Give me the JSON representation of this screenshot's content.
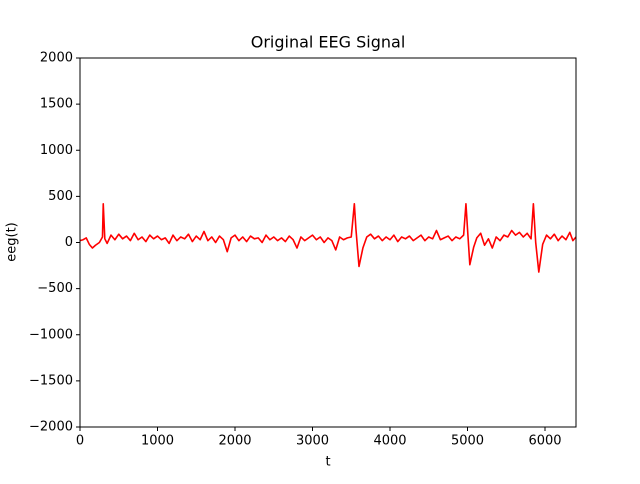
{
  "chart_data": {
    "type": "line",
    "title": "Original EEG Signal",
    "xlabel": "t",
    "ylabel": "eeg(t)",
    "xlim": [
      0,
      6400
    ],
    "ylim": [
      -2000,
      2000
    ],
    "xticks": [
      0,
      1000,
      2000,
      3000,
      4000,
      5000,
      6000
    ],
    "yticks": [
      {
        "value": -2000,
        "label": "−2000"
      },
      {
        "value": -1500,
        "label": "−1500"
      },
      {
        "value": -1000,
        "label": "−1000"
      },
      {
        "value": -500,
        "label": "−500"
      },
      0,
      500,
      1000,
      1500,
      2000
    ],
    "grid": false,
    "x": [
      0,
      40,
      80,
      120,
      160,
      200,
      250,
      290,
      300,
      320,
      350,
      400,
      450,
      500,
      550,
      600,
      650,
      700,
      750,
      800,
      850,
      900,
      950,
      1000,
      1050,
      1100,
      1150,
      1200,
      1250,
      1300,
      1350,
      1400,
      1450,
      1500,
      1550,
      1600,
      1650,
      1700,
      1750,
      1800,
      1850,
      1900,
      1950,
      2000,
      2050,
      2100,
      2150,
      2200,
      2250,
      2300,
      2350,
      2400,
      2450,
      2500,
      2550,
      2600,
      2650,
      2700,
      2750,
      2800,
      2850,
      2900,
      2950,
      3000,
      3050,
      3100,
      3150,
      3200,
      3250,
      3300,
      3350,
      3400,
      3450,
      3500,
      3540,
      3560,
      3600,
      3650,
      3700,
      3750,
      3800,
      3850,
      3900,
      3950,
      4000,
      4050,
      4100,
      4150,
      4200,
      4250,
      4300,
      4350,
      4400,
      4450,
      4500,
      4550,
      4600,
      4650,
      4700,
      4750,
      4800,
      4850,
      4900,
      4950,
      4980,
      5000,
      5030,
      5080,
      5120,
      5170,
      5220,
      5270,
      5320,
      5370,
      5420,
      5470,
      5520,
      5570,
      5620,
      5670,
      5720,
      5770,
      5820,
      5850,
      5880,
      5920,
      5970,
      6020,
      6070,
      6120,
      6170,
      6220,
      6270,
      6320,
      6360,
      6400
    ],
    "series": [
      {
        "name": "eeg",
        "color": "#ff0000",
        "values": [
          20,
          30,
          50,
          -20,
          -60,
          -30,
          0,
          60,
          420,
          40,
          -10,
          80,
          30,
          90,
          40,
          70,
          20,
          100,
          30,
          60,
          10,
          80,
          40,
          70,
          30,
          50,
          -10,
          80,
          20,
          60,
          40,
          90,
          10,
          70,
          30,
          120,
          20,
          60,
          0,
          70,
          30,
          -100,
          50,
          80,
          20,
          60,
          10,
          70,
          40,
          50,
          0,
          80,
          30,
          60,
          20,
          50,
          10,
          70,
          30,
          -60,
          60,
          20,
          50,
          80,
          30,
          60,
          0,
          50,
          20,
          -80,
          60,
          30,
          50,
          60,
          420,
          150,
          -260,
          -60,
          60,
          90,
          40,
          70,
          20,
          60,
          30,
          80,
          10,
          60,
          40,
          70,
          20,
          50,
          80,
          20,
          60,
          40,
          130,
          30,
          50,
          70,
          20,
          60,
          40,
          80,
          420,
          150,
          -240,
          -50,
          50,
          100,
          -30,
          40,
          -60,
          60,
          20,
          80,
          60,
          130,
          80,
          110,
          60,
          100,
          40,
          420,
          0,
          -320,
          -20,
          80,
          40,
          90,
          20,
          70,
          30,
          110,
          20,
          60
        ]
      }
    ]
  }
}
